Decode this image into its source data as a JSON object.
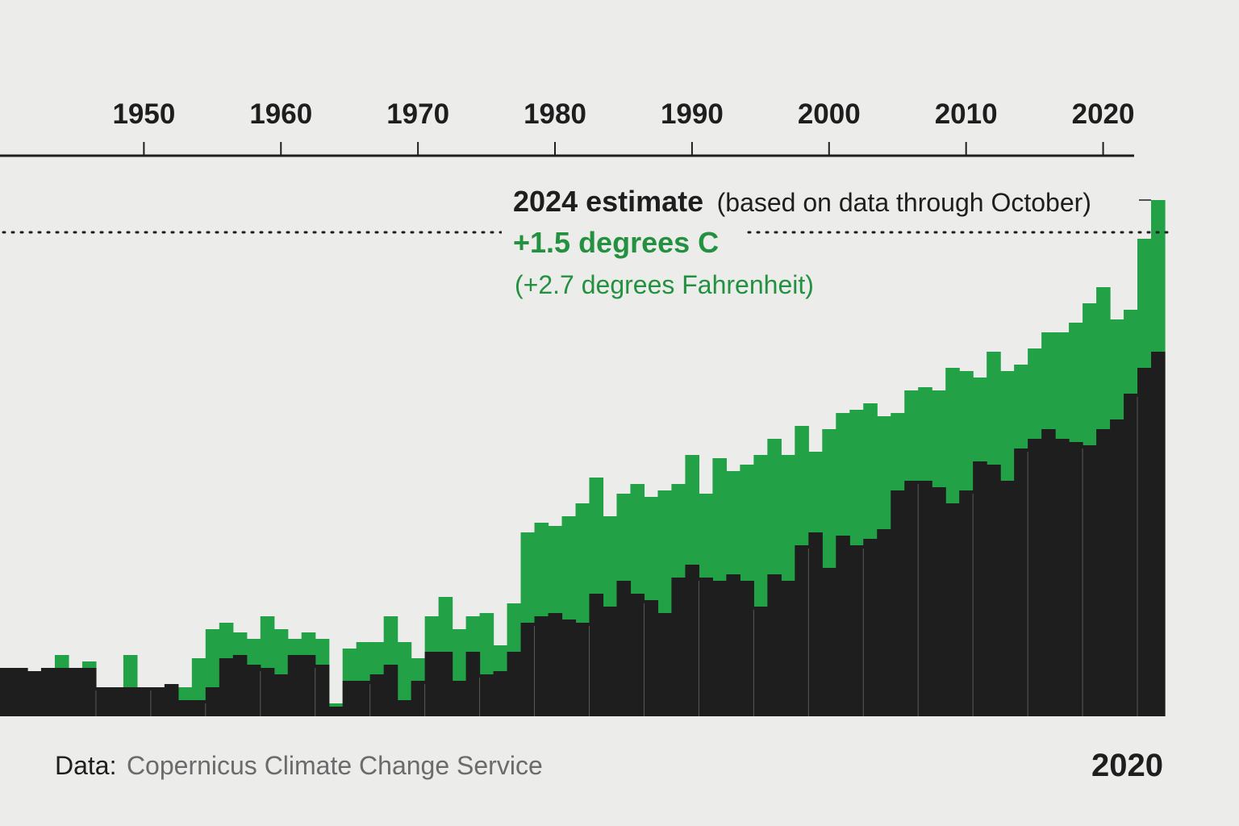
{
  "chart_data": {
    "type": "bar",
    "x_axis": {
      "ticks": [
        "1950",
        "1960",
        "1970",
        "1980",
        "1990",
        "2000",
        "2010",
        "2020"
      ],
      "range": [
        1940,
        2024
      ]
    },
    "y_axis": {
      "unit": "degrees C",
      "range": [
        0.0,
        1.75
      ]
    },
    "threshold": {
      "value": 1.5,
      "style": "dotted"
    },
    "series": [
      {
        "values": [
          0.15,
          0.15,
          0.14,
          0.15,
          0.19,
          0.15,
          0.17,
          0.09,
          0.09,
          0.19,
          0.05,
          0.05,
          0.05,
          0.09,
          0.18,
          0.27,
          0.29,
          0.26,
          0.24,
          0.31,
          0.27,
          0.24,
          0.26,
          0.24,
          0.04,
          0.21,
          0.23,
          0.23,
          0.31,
          0.23,
          0.18,
          0.31,
          0.37,
          0.27,
          0.31,
          0.32,
          0.22,
          0.35,
          0.57,
          0.6,
          0.59,
          0.62,
          0.66,
          0.74,
          0.62,
          0.69,
          0.72,
          0.68,
          0.7,
          0.72,
          0.81,
          0.69,
          0.8,
          0.76,
          0.78,
          0.81,
          0.86,
          0.81,
          0.9,
          0.82,
          0.89,
          0.94,
          0.95,
          0.97,
          0.93,
          0.94,
          1.01,
          1.02,
          1.01,
          1.08,
          1.07,
          1.05,
          1.13,
          1.07,
          1.09,
          1.14,
          1.19,
          1.19,
          1.22,
          1.28,
          1.33,
          1.23,
          1.26,
          1.48,
          1.6
        ]
      },
      {
        "values": [
          0.15,
          0.15,
          0.14,
          0.15,
          0.15,
          0.15,
          0.15,
          0.09,
          0.09,
          0.09,
          0.09,
          0.09,
          0.1,
          0.05,
          0.05,
          0.09,
          0.18,
          0.19,
          0.16,
          0.15,
          0.13,
          0.19,
          0.19,
          0.16,
          0.03,
          0.11,
          0.11,
          0.13,
          0.16,
          0.05,
          0.11,
          0.2,
          0.2,
          0.11,
          0.2,
          0.13,
          0.14,
          0.2,
          0.29,
          0.31,
          0.32,
          0.3,
          0.29,
          0.38,
          0.34,
          0.42,
          0.38,
          0.36,
          0.32,
          0.43,
          0.47,
          0.43,
          0.42,
          0.44,
          0.42,
          0.34,
          0.44,
          0.42,
          0.53,
          0.57,
          0.46,
          0.56,
          0.53,
          0.55,
          0.58,
          0.7,
          0.73,
          0.73,
          0.71,
          0.66,
          0.7,
          0.79,
          0.78,
          0.73,
          0.83,
          0.86,
          0.89,
          0.86,
          0.85,
          0.84,
          0.89,
          0.92,
          1.0,
          1.08,
          1.13
        ]
      }
    ],
    "colors": {
      "observed": "#22a147",
      "baseline": "#1e1e1e",
      "axis": "#1e1e1e",
      "background": "#ececeb"
    },
    "annotation": {
      "title_bold": "2024 estimate",
      "title_note": "(based on data through October)",
      "value_c": "+1.5 degrees C",
      "value_f": "(+2.7 degrees Fahrenheit)"
    },
    "source_prefix": "Data:",
    "source_name": "Copernicus Climate Change Service",
    "corner_label": "2020"
  }
}
